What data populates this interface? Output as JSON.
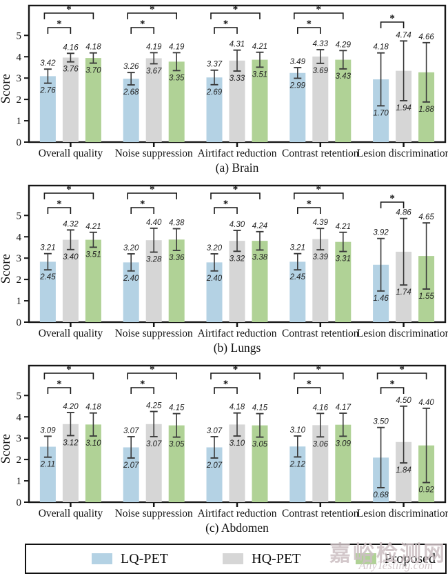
{
  "ylabel": "Score",
  "yticks": [
    0,
    1,
    2,
    3,
    4,
    5
  ],
  "series_names": [
    "LQ-PET",
    "HQ-PET",
    "Proposed"
  ],
  "colors": {
    "series": [
      "#b4d2e4",
      "#d6d6d6",
      "#b0d296"
    ],
    "error_bar": "#3a3a3a",
    "frame": "#161616",
    "text": "#111111"
  },
  "chart_data": [
    {
      "type": "bar",
      "title": "(a) Brain",
      "ylabel": "Score",
      "ylim": [
        0,
        6.4
      ],
      "categories": [
        "Overall quality",
        "Noise suppression",
        "Airtifact reduction",
        "Contrast retention",
        "Lesion discrimination"
      ],
      "series": [
        {
          "name": "LQ-PET",
          "bar": [
            3.09,
            2.97,
            3.03,
            3.24,
            2.94
          ],
          "upper": [
            3.42,
            3.26,
            3.37,
            3.49,
            4.18
          ],
          "lower": [
            2.76,
            2.68,
            2.69,
            2.99,
            1.7
          ]
        },
        {
          "name": "HQ-PET",
          "bar": [
            3.96,
            3.93,
            3.82,
            4.01,
            3.34
          ],
          "upper": [
            4.16,
            4.19,
            4.31,
            4.33,
            4.74
          ],
          "lower": [
            3.76,
            3.67,
            3.33,
            3.69,
            1.94
          ]
        },
        {
          "name": "Proposed",
          "bar": [
            3.94,
            3.77,
            3.86,
            3.86,
            3.27
          ],
          "upper": [
            4.18,
            4.19,
            4.21,
            4.29,
            4.66
          ],
          "lower": [
            3.7,
            3.35,
            3.51,
            3.43,
            1.88
          ]
        }
      ],
      "sig_label": "*",
      "significance": [
        [
          [
            0,
            1
          ],
          [
            0,
            2
          ]
        ],
        [
          [
            0,
            1
          ],
          [
            0,
            2
          ]
        ],
        [
          [
            0,
            1
          ],
          [
            0,
            2
          ]
        ],
        [
          [
            0,
            1
          ],
          [
            0,
            2
          ]
        ],
        [
          [
            0,
            1
          ]
        ]
      ]
    },
    {
      "type": "bar",
      "title": "(b) Lungs",
      "ylabel": "Score",
      "ylim": [
        0,
        6.4
      ],
      "categories": [
        "Overall quality",
        "Noise suppression",
        "Airtifact reduction",
        "Contrast retention",
        "Lesion discrimination"
      ],
      "series": [
        {
          "name": "LQ-PET",
          "bar": [
            2.83,
            2.8,
            2.8,
            2.83,
            2.69
          ],
          "upper": [
            3.21,
            3.2,
            3.2,
            3.21,
            3.92
          ],
          "lower": [
            2.45,
            2.4,
            2.4,
            2.45,
            1.46
          ]
        },
        {
          "name": "HQ-PET",
          "bar": [
            3.86,
            3.84,
            3.81,
            3.89,
            3.3
          ],
          "upper": [
            4.32,
            4.4,
            4.3,
            4.39,
            4.86
          ],
          "lower": [
            3.4,
            3.28,
            3.32,
            3.39,
            1.74
          ]
        },
        {
          "name": "Proposed",
          "bar": [
            3.86,
            3.87,
            3.81,
            3.76,
            3.1
          ],
          "upper": [
            4.21,
            4.38,
            4.24,
            4.21,
            4.65
          ],
          "lower": [
            3.51,
            3.36,
            3.38,
            3.31,
            1.55
          ]
        }
      ],
      "sig_label": "*",
      "significance": [
        [
          [
            0,
            1
          ],
          [
            0,
            2
          ]
        ],
        [
          [
            0,
            1
          ],
          [
            0,
            2
          ]
        ],
        [
          [
            0,
            1
          ],
          [
            0,
            2
          ]
        ],
        [
          [
            0,
            1
          ],
          [
            0,
            2
          ]
        ],
        [
          [
            0,
            1
          ]
        ]
      ]
    },
    {
      "type": "bar",
      "title": "(c) Abdomen",
      "ylabel": "Score",
      "ylim": [
        0,
        6.4
      ],
      "categories": [
        "Overall quality",
        "Noise suppression",
        "Airtifact reduction",
        "Contrast retention",
        "Lesion discrimination"
      ],
      "series": [
        {
          "name": "LQ-PET",
          "bar": [
            2.6,
            2.57,
            2.57,
            2.61,
            2.09
          ],
          "upper": [
            3.09,
            3.07,
            3.07,
            3.1,
            3.5
          ],
          "lower": [
            2.11,
            2.07,
            2.07,
            2.12,
            0.68
          ]
        },
        {
          "name": "HQ-PET",
          "bar": [
            3.66,
            3.66,
            3.64,
            3.61,
            2.82
          ],
          "upper": [
            4.2,
            4.25,
            4.18,
            4.16,
            4.5
          ],
          "lower": [
            3.12,
            3.07,
            3.1,
            3.06,
            1.84
          ]
        },
        {
          "name": "Proposed",
          "bar": [
            3.64,
            3.6,
            3.6,
            3.63,
            2.66
          ],
          "upper": [
            4.18,
            4.15,
            4.15,
            4.17,
            4.4
          ],
          "lower": [
            3.1,
            3.05,
            3.05,
            3.09,
            0.92
          ]
        }
      ],
      "sig_label": "*",
      "significance": [
        [
          [
            0,
            1
          ],
          [
            0,
            2
          ]
        ],
        [
          [
            0,
            1
          ],
          [
            0,
            2
          ]
        ],
        [
          [
            0,
            1
          ],
          [
            0,
            2
          ]
        ],
        [
          [
            0,
            1
          ],
          [
            0,
            2
          ]
        ],
        [
          [
            0,
            1
          ],
          [
            0,
            2
          ]
        ]
      ]
    }
  ],
  "legend": {
    "items": [
      {
        "label": "LQ-PET",
        "color": "#b4d2e4"
      },
      {
        "label": "HQ-PET",
        "color": "#d6d6d6"
      },
      {
        "label": "Proposed",
        "color": "#b0d296"
      }
    ]
  },
  "watermark": {
    "line1": "嘉峪检测网",
    "line2": "AnyTesting.com",
    "color": "#ccbfc3"
  }
}
